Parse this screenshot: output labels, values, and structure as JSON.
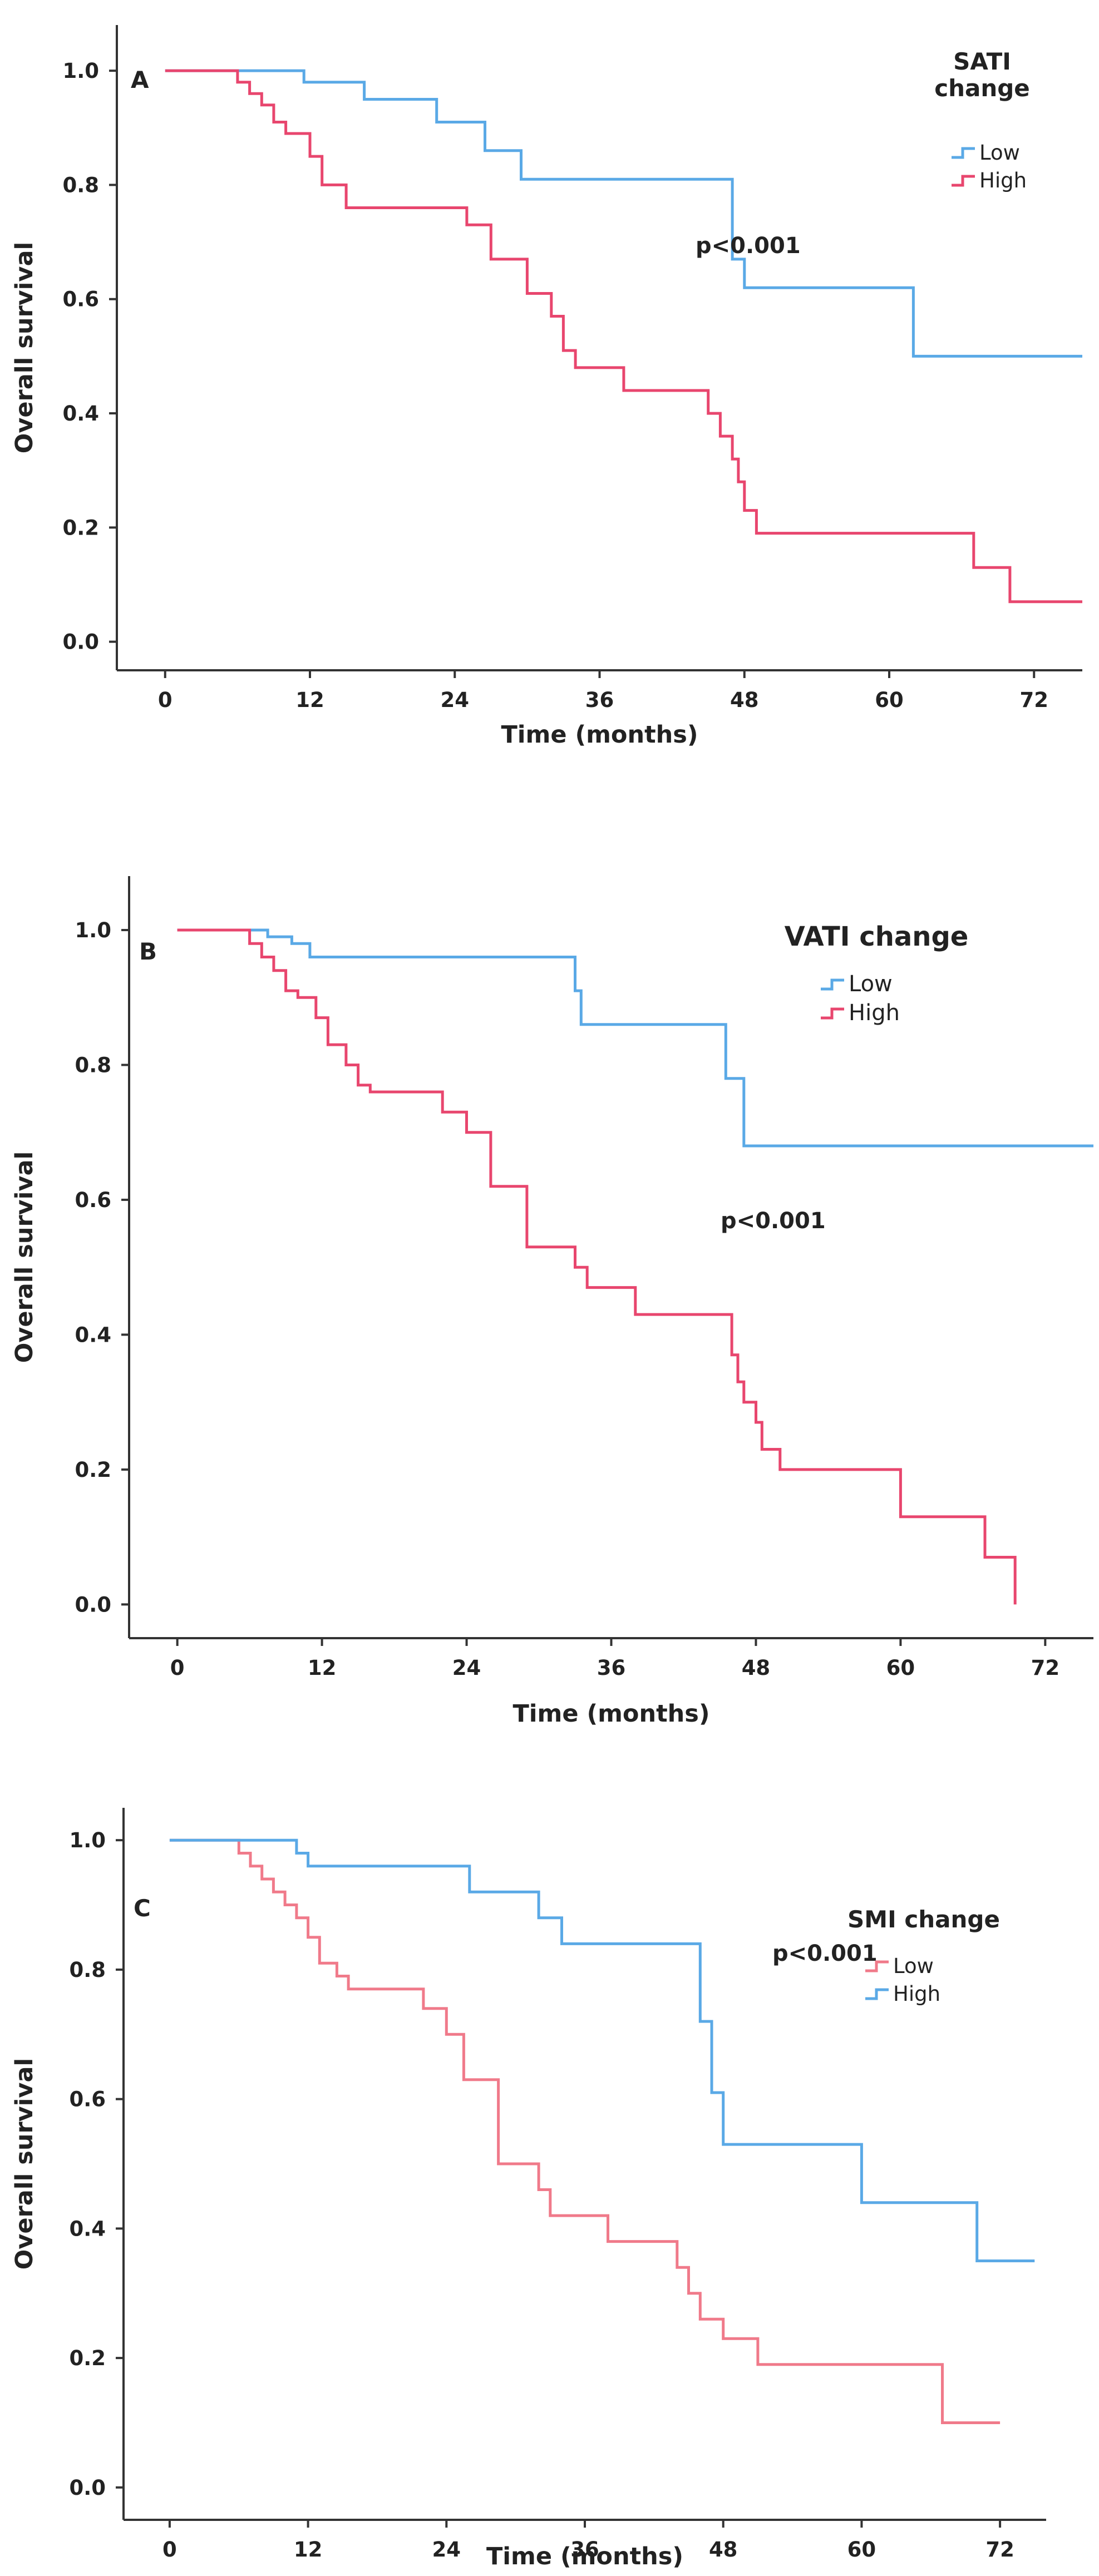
{
  "chart_data": [
    {
      "type": "line",
      "panel_label": "A",
      "title": "",
      "xlabel": "Time (months)",
      "ylabel": "Overall survival",
      "xticks": [
        "0",
        "12",
        "24",
        "36",
        "48",
        "60",
        "72"
      ],
      "yticks": [
        "0.0",
        "0.2",
        "0.4",
        "0.6",
        "0.8",
        "1.0"
      ],
      "xlim": [
        -4,
        76
      ],
      "ylim": [
        -0.05,
        1.08
      ],
      "legend_title": "SATI change",
      "legend_title_lines": [
        "SATI",
        "change"
      ],
      "annotation": "p<0.001",
      "series": [
        {
          "name": "Low",
          "color": "#5aa9e6",
          "x": [
            0,
            11.5,
            16.5,
            22.5,
            26.5,
            29.5,
            47,
            48,
            62,
            76
          ],
          "y": [
            1.0,
            0.98,
            0.95,
            0.91,
            0.86,
            0.81,
            0.67,
            0.62,
            0.5,
            0.5
          ]
        },
        {
          "name": "High",
          "color": "#e8466e",
          "x": [
            0,
            6,
            7,
            8,
            9,
            10,
            12,
            13,
            15,
            25,
            27,
            30,
            32,
            33,
            34,
            38,
            45,
            46,
            47,
            47.5,
            48,
            49,
            51,
            67,
            70,
            76
          ],
          "y": [
            1.0,
            0.98,
            0.96,
            0.94,
            0.91,
            0.89,
            0.85,
            0.8,
            0.76,
            0.73,
            0.67,
            0.61,
            0.57,
            0.51,
            0.48,
            0.44,
            0.4,
            0.36,
            0.32,
            0.28,
            0.23,
            0.19,
            0.19,
            0.13,
            0.07,
            0.07
          ]
        }
      ]
    },
    {
      "type": "line",
      "panel_label": "B",
      "title": "",
      "xlabel": "Time (months)",
      "ylabel": "Overall survival",
      "xticks": [
        "0",
        "12",
        "24",
        "36",
        "48",
        "60",
        "72"
      ],
      "yticks": [
        "0.0",
        "0.2",
        "0.4",
        "0.6",
        "0.8",
        "1.0"
      ],
      "xlim": [
        -4,
        76
      ],
      "ylim": [
        -0.05,
        1.08
      ],
      "legend_title": "VATI change",
      "legend_title_lines": [
        "VATI change"
      ],
      "annotation": "p<0.001",
      "series": [
        {
          "name": "Low",
          "color": "#5aa9e6",
          "x": [
            0,
            7.5,
            9.5,
            11,
            33,
            33.5,
            45.5,
            47,
            76
          ],
          "y": [
            1.0,
            0.99,
            0.98,
            0.96,
            0.91,
            0.86,
            0.78,
            0.68,
            0.68
          ]
        },
        {
          "name": "High",
          "color": "#e8466e",
          "x": [
            0,
            6,
            7,
            8,
            9,
            10,
            11.5,
            12.5,
            14,
            15,
            16,
            22,
            24,
            26,
            29,
            33,
            34,
            38,
            46,
            46.5,
            47,
            48,
            48.5,
            50,
            60,
            67,
            69.5
          ],
          "y": [
            1.0,
            0.98,
            0.96,
            0.94,
            0.91,
            0.9,
            0.87,
            0.83,
            0.8,
            0.77,
            0.76,
            0.73,
            0.7,
            0.62,
            0.53,
            0.5,
            0.47,
            0.43,
            0.37,
            0.33,
            0.3,
            0.27,
            0.23,
            0.2,
            0.13,
            0.07,
            0.0
          ]
        }
      ]
    },
    {
      "type": "line",
      "panel_label": "C",
      "title": "",
      "xlabel": "Time (months)",
      "ylabel": "Overall survival",
      "xticks": [
        "0",
        "12",
        "24",
        "36",
        "48",
        "60",
        "72"
      ],
      "yticks": [
        "0.0",
        "0.2",
        "0.4",
        "0.6",
        "0.8",
        "1.0"
      ],
      "xlim": [
        -4,
        76
      ],
      "ylim": [
        -0.05,
        1.05
      ],
      "legend_title": "SMI change",
      "legend_title_lines": [
        "SMI change"
      ],
      "annotation": "p<0.001",
      "series": [
        {
          "name": "Low",
          "color": "#f07a8a",
          "x": [
            0,
            6,
            7,
            8,
            9,
            10,
            11,
            12,
            13,
            14.5,
            15.5,
            22,
            24,
            25.5,
            28.5,
            32,
            33,
            38,
            44,
            45,
            46,
            48,
            51,
            67,
            72
          ],
          "y": [
            1.0,
            0.98,
            0.96,
            0.94,
            0.92,
            0.9,
            0.88,
            0.85,
            0.81,
            0.79,
            0.77,
            0.74,
            0.7,
            0.63,
            0.5,
            0.46,
            0.42,
            0.38,
            0.34,
            0.3,
            0.26,
            0.23,
            0.19,
            0.1,
            0.1
          ]
        },
        {
          "name": "High",
          "color": "#5aa9e6",
          "x": [
            0,
            11,
            12,
            26,
            32,
            34,
            46,
            47,
            48,
            60,
            70,
            75
          ],
          "y": [
            1.0,
            0.98,
            0.96,
            0.92,
            0.88,
            0.84,
            0.72,
            0.61,
            0.53,
            0.44,
            0.35,
            0.35
          ]
        }
      ]
    }
  ]
}
